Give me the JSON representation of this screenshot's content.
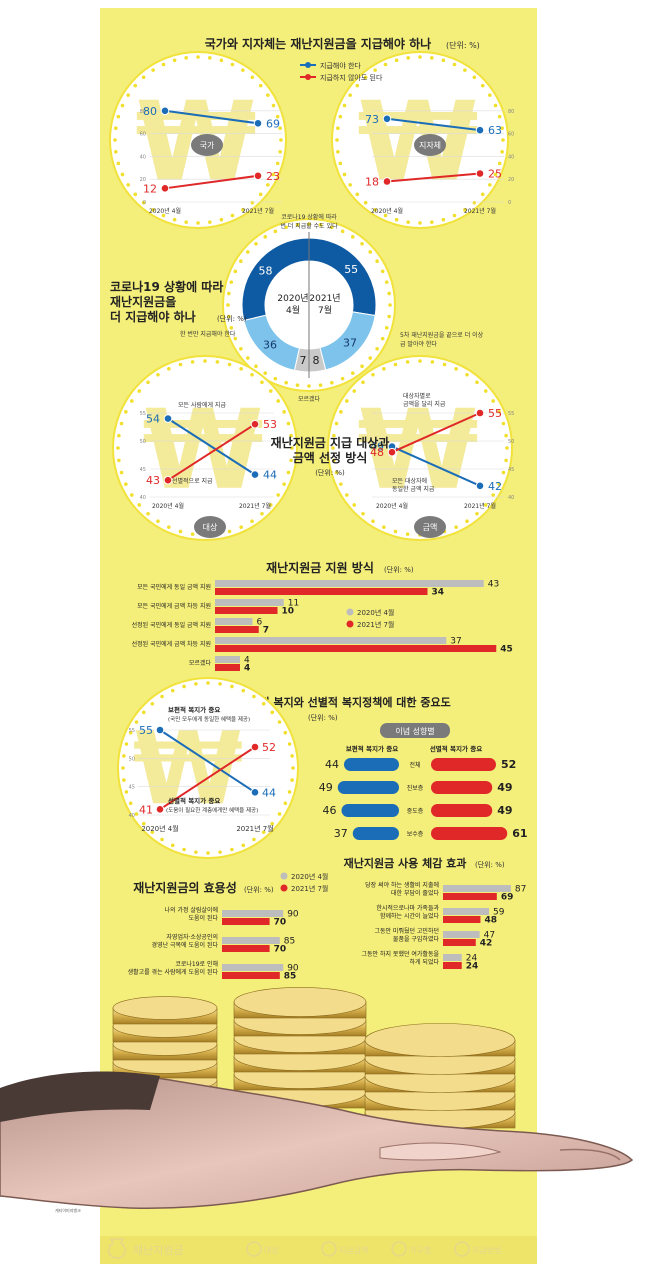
{
  "colors": {
    "background": "#f4ee7a",
    "blue": "#1c6db8",
    "red": "#e02828",
    "gray": "#bdbdbd",
    "dark_blue": "#0e5aa3",
    "light_blue": "#7ec3ec",
    "gold": "#e9d27a"
  },
  "sections": {
    "s1_title": "국가와 지자체는 재난지원금을 지급해야 하나",
    "unit": "(단위: %)",
    "s2_title_lines": [
      "코로나19 상황에 따라",
      "재난지원금을",
      "더 지급해야 하나"
    ],
    "s3_title_lines": [
      "재난지원금 지급 대상과",
      "금액 선정 방식"
    ],
    "s4_title": "재난지원금 지원 방식",
    "s5_title": "보편적 복지와 선별적 복지정책에 대한 중요도",
    "s6_title": "재난지원금의 효용성",
    "s7_title": "재난지원금 사용 체감 효과",
    "credit": "게티이미지뱅크"
  },
  "chart_data": [
    {
      "id": "pay_state",
      "type": "line",
      "title": "국가와 지자체는 재난지원금을 지급해야 하나",
      "badge": "국가",
      "x": [
        "2020년 4월",
        "2021년 7월"
      ],
      "ylim": [
        0,
        100
      ],
      "yticks": [
        "80",
        "60",
        "40",
        "20",
        "0"
      ],
      "legend": [
        "지급해야 한다",
        "지급하지 않아도 된다"
      ],
      "series": [
        {
          "name": "지급해야 한다",
          "values": [
            80,
            69
          ]
        },
        {
          "name": "지급하지 않아도 된다",
          "values": [
            12,
            23
          ]
        }
      ]
    },
    {
      "id": "pay_local",
      "type": "line",
      "badge": "지자체",
      "x": [
        "2020년 4월",
        "2021년 7월"
      ],
      "ylim": [
        0,
        100
      ],
      "yticks": [
        "80",
        "60",
        "40",
        "20",
        "0"
      ],
      "series": [
        {
          "name": "지급해야 한다",
          "values": [
            73,
            63
          ]
        },
        {
          "name": "지급하지 않아도 된다",
          "values": [
            18,
            25
          ]
        }
      ]
    },
    {
      "id": "more_support",
      "type": "pie",
      "title": "코로나19 상황에 따라 재난지원금을 더 지급해야 하나",
      "left_label": "2020년 4월",
      "right_label": "2021년 7월",
      "segments_left": [
        58,
        36,
        7
      ],
      "segments_right": [
        55,
        37,
        8
      ],
      "labels": {
        "more": "코로나19 상황에 따라 몇 번 더 지급할 수도 있다",
        "once": "한 번만 지급해야 한다",
        "fifth": "5차 재난지원금을 끝으로 더 이상 지급 말아야 한다",
        "unknown": "모르겠다"
      }
    },
    {
      "id": "target",
      "type": "line",
      "badge": "대상",
      "x": [
        "2020년 4월",
        "2021년 7월"
      ],
      "ylim": [
        40,
        55
      ],
      "yticks": [
        "55",
        "50",
        "45",
        "40"
      ],
      "series": [
        {
          "name": "모든 사람에게 지급",
          "values": [
            54,
            44
          ]
        },
        {
          "name": "선별적으로 지급",
          "values": [
            43,
            53
          ]
        }
      ]
    },
    {
      "id": "amount",
      "type": "line",
      "badge": "금액",
      "x": [
        "2020년 4월",
        "2021년 7월"
      ],
      "ylim": [
        40,
        55
      ],
      "yticks": [
        "55",
        "50",
        "45",
        "40"
      ],
      "series": [
        {
          "name": "모든 대상자에게 동일한 금액 지급",
          "values": [
            49,
            42
          ]
        },
        {
          "name": "대상자별로 금액을 달리 지급",
          "values": [
            48,
            55
          ]
        }
      ]
    },
    {
      "id": "method",
      "type": "bar",
      "title": "재난지원금 지원 방식",
      "categories": [
        "모든 국민에게 동일 금액 지원",
        "모든 국민에게 금액 차등 지원",
        "선정된 국민에게 동일 금액 지원",
        "선정된 국민에게 금액 차등 지원",
        "모르겠다"
      ],
      "legend": [
        "2020년 4월",
        "2021년 7월"
      ],
      "series": [
        {
          "name": "2020년 4월",
          "values": [
            43,
            11,
            6,
            37,
            4
          ]
        },
        {
          "name": "2021년 7월",
          "values": [
            34,
            10,
            7,
            45,
            4
          ]
        }
      ]
    },
    {
      "id": "welfare_trend",
      "type": "line",
      "title": "보편적 복지와 선별적 복지정책에 대한 중요도",
      "x": [
        "2020년 4월",
        "2021년 7월"
      ],
      "ylim": [
        40,
        55
      ],
      "yticks": [
        "55",
        "50",
        "45",
        "40"
      ],
      "series": [
        {
          "name": "보편적 복지가 중요",
          "values": [
            55,
            44
          ]
        },
        {
          "name": "선별적 복지가 중요",
          "values": [
            41,
            52
          ]
        }
      ],
      "notes": {
        "univ_title": "보편적 복지가 중요",
        "univ_desc": "(국민 모두에게 동일한 혜택을 제공)",
        "sel_title": "선별적 복지가 중요",
        "sel_desc": "(도움이 필요한 계층에게만 혜택을 제공)"
      }
    },
    {
      "id": "ideology",
      "type": "bar",
      "header": "이념 성향별",
      "left_label": "보편적 복지가 중요",
      "right_label": "선별적 복지가 중요",
      "categories": [
        "전체",
        "진보층",
        "중도층",
        "보수층"
      ],
      "series": [
        {
          "name": "보편적 복지가 중요",
          "values": [
            44,
            49,
            46,
            37
          ]
        },
        {
          "name": "선별적 복지가 중요",
          "values": [
            52,
            49,
            49,
            61
          ]
        }
      ]
    },
    {
      "id": "utility",
      "type": "bar",
      "title": "재난지원금의 효용성",
      "categories": [
        "나의 가정 살림살이에 도움이 된다",
        "자영업자·소상공인의 경영난 극복에 도움이 된다",
        "코로나19로 인해 생활고를 겪는 사람에게 도움이 된다"
      ],
      "legend": [
        "2020년 4월",
        "2021년 7월"
      ],
      "series": [
        {
          "name": "2020년 4월",
          "values": [
            90,
            85,
            90
          ]
        },
        {
          "name": "2021년 7월",
          "values": [
            70,
            70,
            85
          ]
        }
      ]
    },
    {
      "id": "effect",
      "type": "bar",
      "title": "재난지원금 사용 체감 효과",
      "categories": [
        "당장 써야 하는 생활비 지출에 대한 부담이 줄었다",
        "한시적으로나마 가족들과 함께하는 시간이 늘었다",
        "그동안 미뤄뒀던 고민하던 물품을 구입하였다",
        "그동안 하지 못했던 여가활동을 하게 되었다"
      ],
      "series": [
        {
          "name": "2020년 4월",
          "values": [
            87,
            59,
            47,
            24
          ]
        },
        {
          "name": "2021년 7월",
          "values": [
            69,
            48,
            42,
            24
          ]
        }
      ]
    }
  ],
  "footer": {
    "items": [
      "재난지원금",
      "대상",
      "지급금액",
      "가구별",
      "지급방법"
    ]
  }
}
